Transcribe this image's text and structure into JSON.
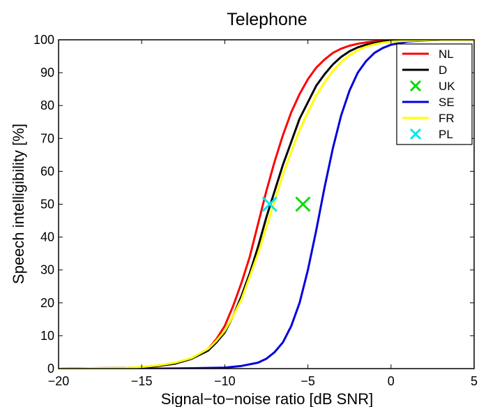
{
  "chart_data": {
    "type": "line",
    "title": "Telephone",
    "xlabel": "Signal−to−noise ratio [dB SNR]",
    "ylabel": "Speech intelligibility [%]",
    "xlim": [
      -20,
      5
    ],
    "ylim": [
      0,
      100
    ],
    "xticks": [
      -20,
      -15,
      -10,
      -5,
      0,
      5
    ],
    "xtick_labels": [
      "−20",
      "−15",
      "−10",
      "−5",
      "0",
      "5"
    ],
    "yticks": [
      0,
      10,
      20,
      30,
      40,
      50,
      60,
      70,
      80,
      90,
      100
    ],
    "ytick_labels": [
      "0",
      "10",
      "20",
      "30",
      "40",
      "50",
      "60",
      "70",
      "80",
      "90",
      "100"
    ],
    "grid": false,
    "legend_position": "top-right",
    "series": [
      {
        "name": "NL",
        "kind": "line",
        "color": "#ff0000",
        "x": [
          -20,
          -18,
          -16,
          -15,
          -14,
          -13,
          -12,
          -11,
          -10.5,
          -10,
          -9.5,
          -9,
          -8.5,
          -8,
          -7.5,
          -7,
          -6.5,
          -6,
          -5.5,
          -5,
          -4.5,
          -4,
          -3.5,
          -3,
          -2.5,
          -2,
          -1.5,
          -1,
          -0.5,
          0,
          1,
          2,
          3,
          5
        ],
        "y": [
          0,
          0.1,
          0.2,
          0.4,
          0.8,
          1.5,
          3,
          6,
          9,
          13,
          19,
          26,
          34,
          44,
          54,
          63,
          71,
          78,
          83.5,
          88,
          91.5,
          94,
          96,
          97.3,
          98.2,
          98.8,
          99.2,
          99.5,
          99.7,
          99.8,
          99.9,
          100,
          100,
          100
        ]
      },
      {
        "name": "D",
        "kind": "line",
        "color": "#000000",
        "x": [
          -20,
          -18,
          -16,
          -15,
          -14,
          -13,
          -12,
          -11,
          -10.5,
          -10,
          -9.5,
          -9,
          -8.5,
          -8,
          -7.5,
          -7,
          -6.5,
          -6,
          -5.5,
          -5,
          -4.5,
          -4,
          -3.5,
          -3,
          -2.5,
          -2,
          -1.5,
          -1,
          -0.5,
          0,
          1,
          2,
          3,
          5
        ],
        "y": [
          0,
          0.1,
          0.2,
          0.4,
          0.8,
          1.5,
          3,
          5.5,
          8,
          11,
          16,
          22,
          29,
          37,
          46,
          54,
          62,
          69,
          76,
          81,
          86,
          89.5,
          92.5,
          94.8,
          96.5,
          97.7,
          98.5,
          99,
          99.4,
          99.6,
          99.8,
          99.9,
          100,
          100
        ]
      },
      {
        "name": "UK",
        "kind": "marker",
        "marker": "x",
        "color": "#00dd00",
        "x": [
          -5.3
        ],
        "y": [
          50
        ]
      },
      {
        "name": "SE",
        "kind": "line",
        "color": "#0000dd",
        "x": [
          -20,
          -14,
          -12,
          -10,
          -9,
          -8,
          -7.5,
          -7,
          -6.5,
          -6,
          -5.5,
          -5,
          -4.5,
          -4,
          -3.5,
          -3,
          -2.5,
          -2,
          -1.5,
          -1,
          -0.5,
          0,
          1,
          2,
          3,
          5
        ],
        "y": [
          0,
          0,
          0.1,
          0.3,
          0.8,
          1.8,
          3,
          5,
          8,
          13,
          20,
          30,
          42,
          55,
          67,
          77,
          84.5,
          90,
          93.5,
          96,
          97.5,
          98.5,
          99.5,
          99.8,
          100,
          100
        ]
      },
      {
        "name": "FR",
        "kind": "line",
        "color": "#ffff00",
        "x": [
          -20,
          -18,
          -16,
          -15,
          -14,
          -13,
          -12,
          -11,
          -10.5,
          -10,
          -9.5,
          -9,
          -8.5,
          -8,
          -7.5,
          -7,
          -6.5,
          -6,
          -5.5,
          -5,
          -4.5,
          -4,
          -3.5,
          -3,
          -2.5,
          -2,
          -1.5,
          -1,
          -0.5,
          0,
          1,
          2,
          3,
          5
        ],
        "y": [
          0,
          0.1,
          0.2,
          0.5,
          1,
          1.8,
          3.2,
          6,
          8.5,
          11.5,
          16,
          21,
          28,
          35,
          43,
          51,
          59,
          66,
          72.5,
          78,
          83,
          87,
          90.5,
          93.2,
          95.3,
          96.8,
          97.9,
          98.6,
          99.1,
          99.4,
          99.7,
          99.9,
          100,
          100
        ]
      },
      {
        "name": "PL",
        "kind": "marker",
        "marker": "x",
        "color": "#00e5ee",
        "x": [
          -7.3
        ],
        "y": [
          50
        ]
      }
    ]
  }
}
